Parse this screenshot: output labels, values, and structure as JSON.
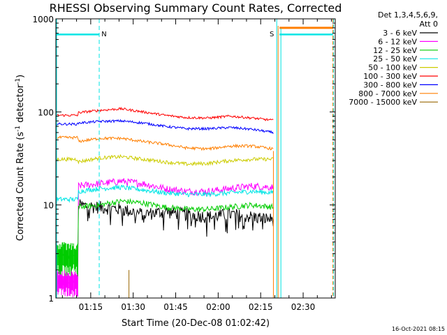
{
  "chart_data": {
    "type": "line",
    "title": "RHESSI Observing Summary Count Rates, Corrected",
    "xlabel": "Start Time (20-Dec-08 01:02:42)",
    "ylabel_main": "Corrected Count Rate (s",
    "ylabel_sup1": "-1",
    "ylabel_mid": " detector",
    "ylabel_sup2": "-1",
    "ylabel_end": ")",
    "yscale": "log",
    "ylim": [
      1,
      1000
    ],
    "xlim": [
      "01:02:42",
      "02:41:20"
    ],
    "x_tick_labels": [
      "01:15",
      "01:30",
      "01:45",
      "02:00",
      "02:15",
      "02:30"
    ],
    "y_tick_labels": [
      "1",
      "10",
      "100",
      "1000"
    ],
    "legend_header": [
      "Det 1,3,4,5,6,9,",
      "Att 0"
    ],
    "legend_position": "right-outside",
    "timestamp": "16-Oct-2021 08:15",
    "annotations": [
      {
        "text": "N",
        "time": "01:18:00",
        "color": "#00e5e5"
      },
      {
        "text": "S",
        "time": "02:20:40",
        "color": "#ff7f00"
      }
    ],
    "series": [
      {
        "name": "3 - 6 keV",
        "color": "#000000",
        "level_before": 1.0,
        "levels": [
          [
            10,
            9.5
          ],
          [
            9.5,
            9
          ],
          [
            9,
            8
          ],
          [
            8,
            8.5
          ],
          [
            8.5,
            8
          ],
          [
            8,
            7.5
          ],
          [
            7.5,
            8
          ],
          [
            8,
            7.5
          ],
          [
            7.5,
            7.0
          ]
        ]
      },
      {
        "name": "6 - 12 keV",
        "color": "#ff00ff",
        "level_before": 1.5,
        "levels": [
          [
            16,
            17
          ],
          [
            17,
            18
          ],
          [
            18,
            17
          ],
          [
            17,
            15
          ],
          [
            15,
            14
          ],
          [
            14,
            14
          ],
          [
            14,
            15
          ],
          [
            15,
            16
          ],
          [
            16,
            15.5
          ]
        ]
      },
      {
        "name": "12 - 25 keV",
        "color": "#00cc00",
        "level_before": 2.8,
        "levels": [
          [
            9.5,
            10
          ],
          [
            10,
            11
          ],
          [
            11,
            10.5
          ],
          [
            10.5,
            9.5
          ],
          [
            9.5,
            9
          ],
          [
            9,
            9
          ],
          [
            9,
            9.5
          ],
          [
            9.5,
            10
          ],
          [
            10,
            9.5
          ]
        ]
      },
      {
        "name": "25 - 50 keV",
        "color": "#00e5e5",
        "level_before": 11.5,
        "levels": [
          [
            14,
            15
          ],
          [
            15,
            15.5
          ],
          [
            15.5,
            14.5
          ],
          [
            14.5,
            13.5
          ],
          [
            13.5,
            13
          ],
          [
            13,
            13
          ],
          [
            13,
            13.5
          ],
          [
            13.5,
            14
          ],
          [
            14,
            13.5
          ]
        ]
      },
      {
        "name": "50 - 100 keV",
        "color": "#cccc00",
        "level_before": 31,
        "levels": [
          [
            29,
            32
          ],
          [
            32,
            33
          ],
          [
            33,
            31
          ],
          [
            31,
            29
          ],
          [
            29,
            27.5
          ],
          [
            27.5,
            28
          ],
          [
            28,
            30
          ],
          [
            30,
            31
          ],
          [
            31,
            31
          ]
        ]
      },
      {
        "name": "100 - 300 keV",
        "color": "#ff0000",
        "level_before": 92,
        "levels": [
          [
            98,
            104
          ],
          [
            104,
            108
          ],
          [
            108,
            100
          ],
          [
            100,
            92
          ],
          [
            92,
            87
          ],
          [
            87,
            86
          ],
          [
            86,
            90
          ],
          [
            90,
            86
          ],
          [
            86,
            81
          ]
        ]
      },
      {
        "name": "300 - 800 keV",
        "color": "#0000ff",
        "level_before": 74,
        "levels": [
          [
            76,
            79
          ],
          [
            79,
            80
          ],
          [
            80,
            76
          ],
          [
            76,
            70
          ],
          [
            70,
            66
          ],
          [
            66,
            66
          ],
          [
            66,
            68
          ],
          [
            68,
            65
          ],
          [
            65,
            60
          ]
        ]
      },
      {
        "name": "800 - 7000 keV",
        "color": "#ff7f00",
        "level_before": 53,
        "levels": [
          [
            48,
            52
          ],
          [
            52,
            52
          ],
          [
            52,
            48
          ],
          [
            48,
            45
          ],
          [
            45,
            41
          ],
          [
            41,
            40
          ],
          [
            40,
            43
          ],
          [
            43,
            43
          ],
          [
            43,
            40
          ]
        ]
      },
      {
        "name": "7000 - 15000 keV",
        "color": "#996600",
        "level_before": 1.0,
        "levels": [
          [
            1,
            1
          ],
          [
            1,
            1
          ],
          [
            1,
            1
          ],
          [
            1,
            1
          ],
          [
            1,
            1
          ],
          [
            1,
            1
          ],
          [
            1,
            1
          ],
          [
            1,
            1
          ],
          [
            1,
            1
          ]
        ]
      }
    ],
    "saa_level": 800,
    "night_level": 680
  }
}
